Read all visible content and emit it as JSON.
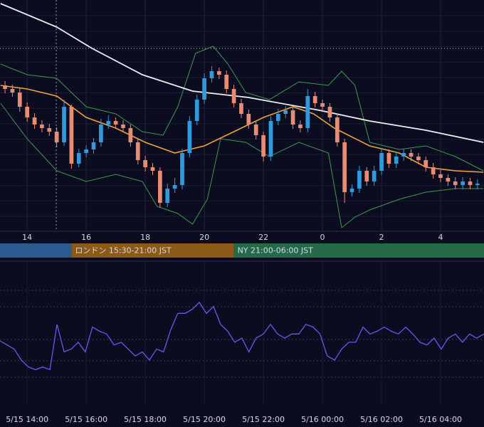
{
  "chart_data": [
    {
      "type": "candlestick",
      "xlim": [
        13.08,
        29.47
      ],
      "ylim": [
        0,
        325
      ],
      "xticks": [
        14,
        16,
        18,
        20,
        22,
        {
          "value": 24,
          "label": "0"
        },
        {
          "value": 26,
          "label": "2"
        },
        {
          "value": 28,
          "label": "4"
        }
      ],
      "up_color": "#2f9bdc",
      "down_color": "#e98c72",
      "x": [
        13.25,
        13.5,
        13.75,
        14,
        14.25,
        14.5,
        14.75,
        15,
        15.25,
        15.5,
        15.75,
        16,
        16.25,
        16.5,
        16.75,
        17,
        17.25,
        17.5,
        17.75,
        18,
        18.25,
        18.5,
        18.75,
        19,
        19.25,
        19.5,
        19.75,
        20,
        20.25,
        20.5,
        20.75,
        21,
        21.25,
        21.5,
        21.75,
        22,
        22.25,
        22.5,
        22.75,
        23,
        23.25,
        23.5,
        23.75,
        24,
        24.25,
        24.5,
        24.75,
        25,
        25.25,
        25.5,
        25.75,
        26,
        26.25,
        26.5,
        26.75,
        27,
        27.25,
        27.5,
        27.75,
        28,
        28.25,
        28.5,
        28.75,
        29,
        29.25
      ],
      "open": [
        205,
        200,
        195,
        175,
        160,
        150,
        145,
        140,
        125,
        175,
        95,
        110,
        115,
        125,
        150,
        155,
        150,
        145,
        125,
        100,
        90,
        85,
        40,
        60,
        65,
        110,
        155,
        185,
        215,
        225,
        220,
        200,
        180,
        165,
        150,
        135,
        105,
        155,
        165,
        170,
        150,
        145,
        190,
        180,
        175,
        160,
        125,
        55,
        60,
        85,
        70,
        85,
        110,
        95,
        105,
        110,
        105,
        100,
        90,
        80,
        75,
        70,
        65,
        70,
        65
      ],
      "high": [
        211,
        206,
        201,
        181,
        166,
        156,
        151,
        146,
        185,
        178,
        116,
        121,
        131,
        158,
        163,
        160,
        156,
        150,
        131,
        106,
        96,
        90,
        67,
        75,
        116,
        162,
        192,
        222,
        232,
        230,
        226,
        206,
        186,
        171,
        156,
        140,
        162,
        172,
        176,
        175,
        156,
        200,
        196,
        185,
        180,
        165,
        130,
        66,
        92,
        90,
        92,
        117,
        115,
        112,
        116,
        115,
        110,
        105,
        96,
        86,
        80,
        76,
        76,
        75,
        73
      ],
      "low": [
        194,
        189,
        168,
        154,
        144,
        139,
        134,
        118,
        120,
        88,
        90,
        104,
        109,
        119,
        144,
        144,
        139,
        119,
        94,
        84,
        79,
        33,
        34,
        54,
        59,
        104,
        149,
        179,
        209,
        214,
        194,
        174,
        159,
        144,
        129,
        98,
        99,
        149,
        159,
        144,
        139,
        139,
        174,
        169,
        154,
        119,
        40,
        49,
        54,
        64,
        64,
        79,
        89,
        89,
        99,
        99,
        94,
        84,
        74,
        69,
        64,
        59,
        59,
        59,
        59
      ],
      "close": [
        200,
        195,
        175,
        160,
        150,
        145,
        140,
        125,
        175,
        95,
        110,
        115,
        125,
        150,
        155,
        150,
        145,
        125,
        100,
        90,
        85,
        40,
        60,
        65,
        110,
        155,
        185,
        215,
        225,
        220,
        200,
        180,
        165,
        150,
        135,
        105,
        155,
        165,
        170,
        150,
        145,
        190,
        180,
        175,
        160,
        125,
        55,
        60,
        85,
        70,
        85,
        110,
        95,
        105,
        110,
        105,
        100,
        90,
        80,
        75,
        70,
        65,
        70,
        65,
        67
      ],
      "lines": [
        {
          "color": "#3f9a50",
          "x": [
            13.1,
            14,
            15,
            16,
            17,
            17.9,
            18.6,
            19.1,
            19.7,
            20.3,
            20.8,
            21.4,
            22.2,
            23.2,
            24.2,
            24.65,
            25.1,
            25.6,
            26.6,
            27.5,
            28.5,
            29.45
          ],
          "values": [
            235,
            220,
            215,
            175,
            165,
            140,
            135,
            175,
            250,
            260,
            235,
            195,
            185,
            210,
            205,
            225,
            205,
            125,
            115,
            120,
            105,
            85
          ]
        },
        {
          "color": "#3f9a50",
          "x": [
            13.1,
            14,
            15,
            16,
            17,
            17.9,
            18.4,
            19.1,
            19.6,
            20.1,
            20.55,
            21.4,
            22.2,
            23.2,
            24.2,
            24.65,
            25.1,
            25.6,
            26.6,
            27.5,
            28.5,
            29.45
          ],
          "values": [
            180,
            130,
            85,
            70,
            80,
            70,
            35,
            25,
            10,
            45,
            130,
            125,
            105,
            125,
            110,
            5,
            20,
            30,
            45,
            55,
            60,
            60
          ]
        },
        {
          "color": "#eeeeee",
          "x": [
            13.1,
            15,
            16.2,
            17.9,
            19.6,
            21.5,
            23.9,
            25.6,
            27.5,
            29.45
          ],
          "values": [
            320,
            287,
            257,
            220,
            197,
            188,
            170,
            155,
            142,
            125
          ]
        },
        {
          "color": "#f2a233",
          "x": [
            13.1,
            14,
            15,
            16,
            17,
            18,
            19,
            20,
            21,
            22,
            23,
            23.7,
            24.4,
            25.6,
            26.6,
            27.5,
            28.5,
            29.45
          ],
          "values": [
            205,
            200,
            190,
            160,
            145,
            125,
            110,
            120,
            140,
            160,
            175,
            165,
            145,
            120,
            110,
            90,
            85,
            83
          ]
        }
      ],
      "sessions": [
        {
          "start": 9,
          "end": 15.5,
          "label": null,
          "color": "#2b5a8e"
        },
        {
          "start": 15.5,
          "end": 21,
          "label": "ロンドン 15:30-21:00 JST",
          "color": "#8a5a16"
        },
        {
          "start": 21,
          "end": 30,
          "label": "NY 21:00-06:00 JST",
          "color": "#236a48"
        }
      ]
    },
    {
      "type": "line",
      "xlim": [
        13.08,
        29.47
      ],
      "ylim": [
        0,
        100
      ],
      "xticks": [
        {
          "value": 14,
          "label": "5/15 14:00"
        },
        {
          "value": 16,
          "label": "5/15 16:00"
        },
        {
          "value": 18,
          "label": "5/15 18:00"
        },
        {
          "value": 20,
          "label": "5/15 20:00"
        },
        {
          "value": 22,
          "label": "5/15 22:00"
        },
        {
          "value": 24,
          "label": "5/16 00:00"
        },
        {
          "value": 26,
          "label": "5/16 02:00"
        },
        {
          "value": 28,
          "label": "5/16 04:00"
        }
      ],
      "color": "#5d5df2",
      "x": [
        13.08,
        13.32,
        13.56,
        13.8,
        14.04,
        14.28,
        14.53,
        14.77,
        15.01,
        15.25,
        15.49,
        15.73,
        15.97,
        16.21,
        16.45,
        16.69,
        16.94,
        17.18,
        17.42,
        17.66,
        17.9,
        18.14,
        18.38,
        18.62,
        18.86,
        19.1,
        19.35,
        19.59,
        19.83,
        20.07,
        20.31,
        20.55,
        20.79,
        21.03,
        21.27,
        21.51,
        21.75,
        22,
        22.24,
        22.48,
        22.72,
        22.96,
        23.2,
        23.44,
        23.68,
        23.92,
        24.16,
        24.41,
        24.65,
        24.89,
        25.13,
        25.37,
        25.61,
        25.85,
        26.09,
        26.33,
        26.57,
        26.82,
        27.06,
        27.3,
        27.54,
        27.78,
        28.02,
        28.26,
        28.5,
        28.74,
        28.98,
        29.22,
        29.47
      ],
      "values": [
        42,
        39,
        36,
        28,
        23,
        21,
        23,
        21,
        54,
        34,
        36,
        41,
        34,
        52,
        49,
        47,
        39,
        41,
        36,
        31,
        34,
        28,
        36,
        34,
        50,
        62,
        62,
        65,
        70,
        62,
        67,
        54,
        49,
        41,
        44,
        34,
        44,
        47,
        54,
        47,
        44,
        47,
        47,
        54,
        52,
        47,
        31,
        28,
        36,
        41,
        41,
        52,
        47,
        49,
        52,
        49,
        47,
        52,
        47,
        41,
        39,
        44,
        36,
        44,
        47,
        41,
        47,
        44,
        47
      ]
    }
  ]
}
